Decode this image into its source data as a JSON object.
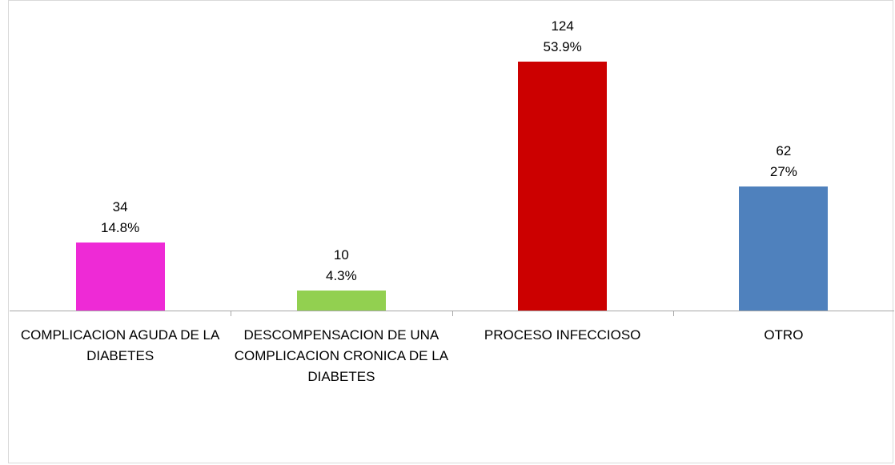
{
  "chart_data": {
    "type": "bar",
    "categories": [
      "COMPLICACION AGUDA DE LA DIABETES",
      "DESCOMPENSACION DE UNA COMPLICACION CRONICA DE LA DIABETES",
      "PROCESO INFECCIOSO",
      "OTRO"
    ],
    "values": [
      34,
      10,
      124,
      62
    ],
    "percent_labels": [
      "14.8%",
      "4.3%",
      "53.9%",
      "27%"
    ],
    "colors": [
      "#ee2ad6",
      "#92d050",
      "#cc0000",
      "#4f81bd"
    ],
    "ylim": [
      0,
      140
    ]
  }
}
